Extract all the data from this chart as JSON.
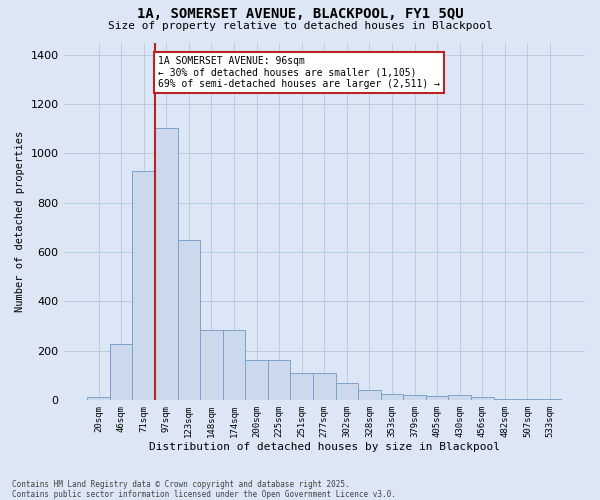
{
  "title_line1": "1A, SOMERSET AVENUE, BLACKPOOL, FY1 5QU",
  "title_line2": "Size of property relative to detached houses in Blackpool",
  "xlabel": "Distribution of detached houses by size in Blackpool",
  "ylabel": "Number of detached properties",
  "bar_color": "#ccd9ec",
  "bar_edge_color": "#7ba3cc",
  "bg_color": "#dce6f5",
  "grid_color": "#b8cce0",
  "vline_color": "#bb2222",
  "annotation_text": "1A SOMERSET AVENUE: 96sqm\n← 30% of detached houses are smaller (1,105)\n69% of semi-detached houses are larger (2,511) →",
  "categories": [
    "20sqm",
    "46sqm",
    "71sqm",
    "97sqm",
    "123sqm",
    "148sqm",
    "174sqm",
    "200sqm",
    "225sqm",
    "251sqm",
    "277sqm",
    "302sqm",
    "328sqm",
    "353sqm",
    "379sqm",
    "405sqm",
    "430sqm",
    "456sqm",
    "482sqm",
    "507sqm",
    "533sqm"
  ],
  "bar_values": [
    10,
    225,
    930,
    1105,
    650,
    285,
    285,
    160,
    160,
    110,
    110,
    70,
    38,
    25,
    20,
    15,
    20,
    12,
    2,
    5,
    2
  ],
  "vline_x": 2.5,
  "ylim": [
    0,
    1450
  ],
  "yticks": [
    0,
    200,
    400,
    600,
    800,
    1000,
    1200,
    1400
  ],
  "footnote_line1": "Contains HM Land Registry data © Crown copyright and database right 2025.",
  "footnote_line2": "Contains public sector information licensed under the Open Government Licence v3.0.",
  "figsize": [
    6.0,
    5.0
  ],
  "dpi": 100
}
